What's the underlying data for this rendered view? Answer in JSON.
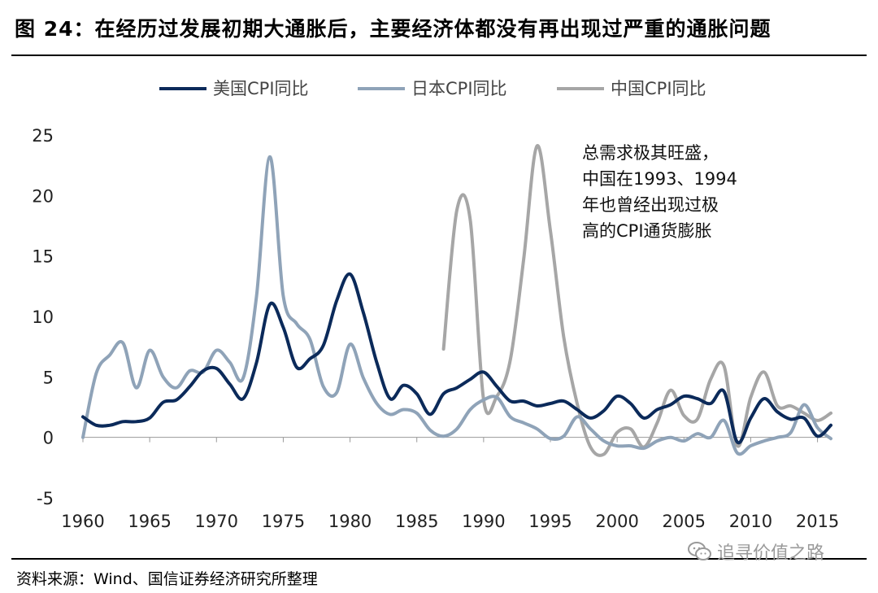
{
  "header": {
    "title": "图 24：在经历过发展初期大通胀后，主要经济体都没有再出现过严重的通胀问题"
  },
  "footer": {
    "source": "资料来源：Wind、国信证券经济研究所整理",
    "watermark": "追寻价值之路",
    "watermark_icon": "wechat-icon"
  },
  "chart_data": {
    "type": "line",
    "title": "",
    "xlabel": "",
    "ylabel": "",
    "xlim": [
      1960,
      2016
    ],
    "ylim": [
      -5,
      25
    ],
    "x_ticks": [
      1960,
      1965,
      1970,
      1975,
      1980,
      1985,
      1990,
      1995,
      2000,
      2005,
      2010,
      2015
    ],
    "y_ticks": [
      -5,
      0,
      5,
      10,
      15,
      20,
      25
    ],
    "grid": false,
    "legend": "top",
    "series": [
      {
        "name": "美国CPI同比",
        "color": "#0b2a5a",
        "x": [
          1960,
          1961,
          1962,
          1963,
          1964,
          1965,
          1966,
          1967,
          1968,
          1969,
          1970,
          1971,
          1972,
          1973,
          1974,
          1975,
          1976,
          1977,
          1978,
          1979,
          1980,
          1981,
          1982,
          1983,
          1984,
          1985,
          1986,
          1987,
          1988,
          1989,
          1990,
          1991,
          1992,
          1993,
          1994,
          1995,
          1996,
          1997,
          1998,
          1999,
          2000,
          2001,
          2002,
          2003,
          2004,
          2005,
          2006,
          2007,
          2008,
          2009,
          2010,
          2011,
          2012,
          2013,
          2014,
          2015,
          2016
        ],
        "values": [
          1.7,
          1.0,
          1.0,
          1.3,
          1.3,
          1.6,
          2.9,
          3.1,
          4.2,
          5.5,
          5.7,
          4.4,
          3.2,
          6.2,
          11.0,
          9.1,
          5.8,
          6.5,
          7.6,
          11.3,
          13.5,
          10.3,
          6.2,
          3.2,
          4.3,
          3.6,
          1.9,
          3.6,
          4.1,
          4.8,
          5.4,
          4.2,
          3.0,
          3.0,
          2.6,
          2.8,
          3.0,
          2.3,
          1.6,
          2.2,
          3.4,
          2.8,
          1.6,
          2.3,
          2.7,
          3.4,
          3.2,
          2.8,
          3.8,
          -0.4,
          1.6,
          3.2,
          2.1,
          1.5,
          1.6,
          0.1,
          1.0
        ]
      },
      {
        "name": "日本CPI同比",
        "color": "#8fa3b8",
        "x": [
          1960,
          1961,
          1962,
          1963,
          1964,
          1965,
          1966,
          1967,
          1968,
          1969,
          1970,
          1971,
          1972,
          1973,
          1974,
          1975,
          1976,
          1977,
          1978,
          1979,
          1980,
          1981,
          1982,
          1983,
          1984,
          1985,
          1986,
          1987,
          1988,
          1989,
          1990,
          1991,
          1992,
          1993,
          1994,
          1995,
          1996,
          1997,
          1998,
          1999,
          2000,
          2001,
          2002,
          2003,
          2004,
          2005,
          2006,
          2007,
          2008,
          2009,
          2010,
          2011,
          2012,
          2013,
          2014,
          2015,
          2016
        ],
        "values": [
          0.0,
          5.3,
          6.8,
          7.8,
          4.1,
          7.2,
          5.0,
          4.1,
          5.5,
          5.4,
          7.2,
          6.2,
          4.9,
          11.7,
          23.2,
          11.7,
          9.4,
          8.1,
          4.2,
          3.7,
          7.7,
          4.9,
          2.8,
          1.9,
          2.3,
          2.0,
          0.6,
          0.1,
          0.7,
          2.3,
          3.1,
          3.3,
          1.7,
          1.2,
          0.7,
          -0.1,
          0.1,
          1.7,
          0.7,
          -0.3,
          -0.7,
          -0.7,
          -0.9,
          -0.3,
          0.0,
          -0.3,
          0.3,
          0.0,
          1.4,
          -1.3,
          -0.7,
          -0.3,
          0.0,
          0.4,
          2.7,
          0.8,
          -0.1
        ]
      },
      {
        "name": "中国CPI同比",
        "color": "#a6a6a6",
        "x": [
          1987,
          1988,
          1989,
          1990,
          1991,
          1992,
          1993,
          1994,
          1995,
          1996,
          1997,
          1998,
          1999,
          2000,
          2001,
          2002,
          2003,
          2004,
          2005,
          2006,
          2007,
          2008,
          2009,
          2010,
          2011,
          2012,
          2013,
          2014,
          2015,
          2016
        ],
        "values": [
          7.3,
          18.8,
          18.0,
          3.1,
          3.4,
          6.4,
          14.7,
          24.1,
          17.1,
          8.3,
          2.8,
          -0.8,
          -1.4,
          0.4,
          0.7,
          -0.8,
          1.2,
          3.9,
          1.8,
          1.5,
          4.8,
          5.9,
          -0.7,
          3.3,
          5.4,
          2.6,
          2.6,
          2.0,
          1.4,
          2.0
        ]
      }
    ],
    "annotation": [
      "总需求极其旺盛，",
      "中国在1993、1994",
      "年也曾经出现过极",
      "高的CPI通货膨胀"
    ]
  }
}
